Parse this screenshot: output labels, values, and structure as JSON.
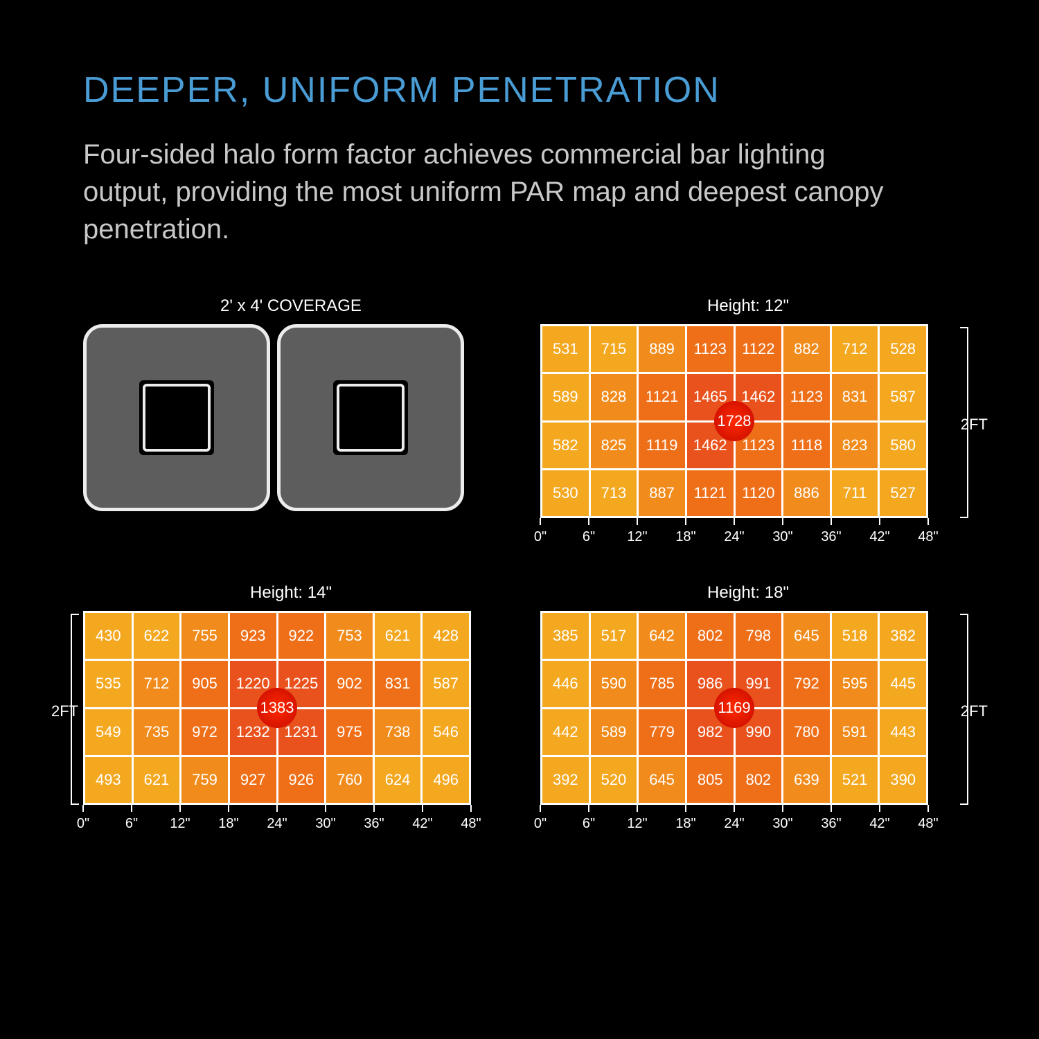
{
  "title": "DEEPER, UNIFORM PENETRATION",
  "subtitle": "Four-sided halo form factor achieves commercial bar lighting output, providing the most uniform PAR map and deepest canopy penetration.",
  "colors": {
    "title": "#4a9cd4",
    "text": "#c8c8c8",
    "background": "#000000",
    "cell_border": "#ffffff",
    "peak_color": "#ff2a00"
  },
  "heat_scale": {
    "low": "#f4a820",
    "mid": "#f18c1c",
    "high": "#ee6f18",
    "max": "#e9521d"
  },
  "fixture": {
    "label": "2' x 4' COVERAGE"
  },
  "x_axis_labels": [
    "0\"",
    "6\"",
    "12\"",
    "18\"",
    "24\"",
    "30\"",
    "36\"",
    "42\"",
    "48\""
  ],
  "y_axis_label": "2FT",
  "heatmaps": [
    {
      "id": "h12",
      "title": "Height: 12\"",
      "peak": 1728,
      "y_bracket": "right",
      "rows": [
        [
          531,
          715,
          889,
          1123,
          1122,
          882,
          712,
          528
        ],
        [
          589,
          828,
          1121,
          1465,
          1462,
          1123,
          831,
          587
        ],
        [
          582,
          825,
          1119,
          1462,
          1123,
          1118,
          823,
          580
        ],
        [
          530,
          713,
          887,
          1121,
          1120,
          886,
          711,
          527
        ]
      ]
    },
    {
      "id": "h14",
      "title": "Height: 14\"",
      "peak": 1383,
      "y_bracket": "left",
      "rows": [
        [
          430,
          622,
          755,
          923,
          922,
          753,
          621,
          428
        ],
        [
          535,
          712,
          905,
          1220,
          1225,
          902,
          831,
          587
        ],
        [
          549,
          735,
          972,
          1232,
          1231,
          975,
          738,
          546
        ],
        [
          493,
          621,
          759,
          927,
          926,
          760,
          624,
          496
        ]
      ]
    },
    {
      "id": "h18",
      "title": "Height: 18\"",
      "peak": 1169,
      "y_bracket": "right",
      "rows": [
        [
          385,
          517,
          642,
          802,
          798,
          645,
          518,
          382
        ],
        [
          446,
          590,
          785,
          986,
          991,
          792,
          595,
          445
        ],
        [
          442,
          589,
          779,
          982,
          990,
          780,
          591,
          443
        ],
        [
          392,
          520,
          645,
          805,
          802,
          639,
          521,
          390
        ]
      ]
    }
  ]
}
